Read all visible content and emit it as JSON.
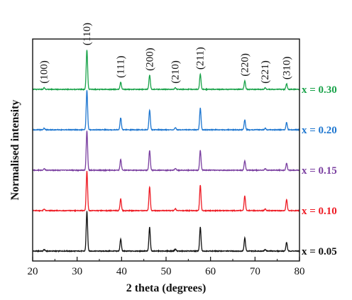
{
  "chart_data": {
    "type": "line",
    "title": "",
    "xlabel": "2 theta (degrees)",
    "ylabel": "Normalised intensity",
    "xlim": [
      20,
      80
    ],
    "x_ticks": [
      20,
      30,
      40,
      50,
      60,
      70,
      80
    ],
    "x_tick_labels": [
      "20",
      "30",
      "40",
      "50",
      "60",
      "70",
      "80"
    ],
    "y_ticks_shown": false,
    "grid": false,
    "offset_stacked": true,
    "peak_annotations": [
      {
        "label": "(100)",
        "x": 22.6
      },
      {
        "label": "(110)",
        "x": 32.2
      },
      {
        "label": "(111)",
        "x": 39.8
      },
      {
        "label": "(200)",
        "x": 46.3
      },
      {
        "label": "(210)",
        "x": 52.1
      },
      {
        "label": "(211)",
        "x": 57.7
      },
      {
        "label": "(220)",
        "x": 67.7
      },
      {
        "label": "(221)",
        "x": 72.3
      },
      {
        "label": "(310)",
        "x": 77.1
      }
    ],
    "series": [
      {
        "name": "x = 0.05",
        "color": "#111111",
        "peaks": [
          {
            "x": 22.6,
            "y": 0.04
          },
          {
            "x": 32.2,
            "y": 1.0
          },
          {
            "x": 39.8,
            "y": 0.3
          },
          {
            "x": 46.3,
            "y": 0.6
          },
          {
            "x": 52.1,
            "y": 0.05
          },
          {
            "x": 57.7,
            "y": 0.6
          },
          {
            "x": 67.7,
            "y": 0.33
          },
          {
            "x": 72.3,
            "y": 0.04
          },
          {
            "x": 77.1,
            "y": 0.22
          }
        ]
      },
      {
        "name": "x = 0.10",
        "color": "#ee1c25",
        "peaks": [
          {
            "x": 22.6,
            "y": 0.04
          },
          {
            "x": 32.2,
            "y": 1.0
          },
          {
            "x": 39.8,
            "y": 0.3
          },
          {
            "x": 46.3,
            "y": 0.6
          },
          {
            "x": 52.1,
            "y": 0.05
          },
          {
            "x": 57.7,
            "y": 0.64
          },
          {
            "x": 67.7,
            "y": 0.37
          },
          {
            "x": 72.3,
            "y": 0.04
          },
          {
            "x": 77.1,
            "y": 0.28
          }
        ]
      },
      {
        "name": "x = 0.15",
        "color": "#7a3fa0",
        "peaks": [
          {
            "x": 22.6,
            "y": 0.04
          },
          {
            "x": 32.2,
            "y": 1.0
          },
          {
            "x": 39.8,
            "y": 0.27
          },
          {
            "x": 46.3,
            "y": 0.5
          },
          {
            "x": 52.1,
            "y": 0.05
          },
          {
            "x": 57.7,
            "y": 0.5
          },
          {
            "x": 67.7,
            "y": 0.24
          },
          {
            "x": 72.3,
            "y": 0.04
          },
          {
            "x": 77.1,
            "y": 0.17
          }
        ]
      },
      {
        "name": "x = 0.20",
        "color": "#1f77d0",
        "peaks": [
          {
            "x": 22.6,
            "y": 0.04
          },
          {
            "x": 32.2,
            "y": 1.0
          },
          {
            "x": 39.8,
            "y": 0.3
          },
          {
            "x": 46.3,
            "y": 0.5
          },
          {
            "x": 52.1,
            "y": 0.05
          },
          {
            "x": 57.7,
            "y": 0.55
          },
          {
            "x": 67.7,
            "y": 0.25
          },
          {
            "x": 72.3,
            "y": 0.04
          },
          {
            "x": 77.1,
            "y": 0.19
          }
        ]
      },
      {
        "name": "x = 0.30",
        "color": "#1aa34a",
        "peaks": [
          {
            "x": 22.6,
            "y": 0.04
          },
          {
            "x": 32.2,
            "y": 1.0
          },
          {
            "x": 39.8,
            "y": 0.18
          },
          {
            "x": 46.3,
            "y": 0.36
          },
          {
            "x": 52.1,
            "y": 0.04
          },
          {
            "x": 57.7,
            "y": 0.39
          },
          {
            "x": 67.7,
            "y": 0.22
          },
          {
            "x": 72.3,
            "y": 0.04
          },
          {
            "x": 77.1,
            "y": 0.14
          }
        ]
      }
    ]
  }
}
